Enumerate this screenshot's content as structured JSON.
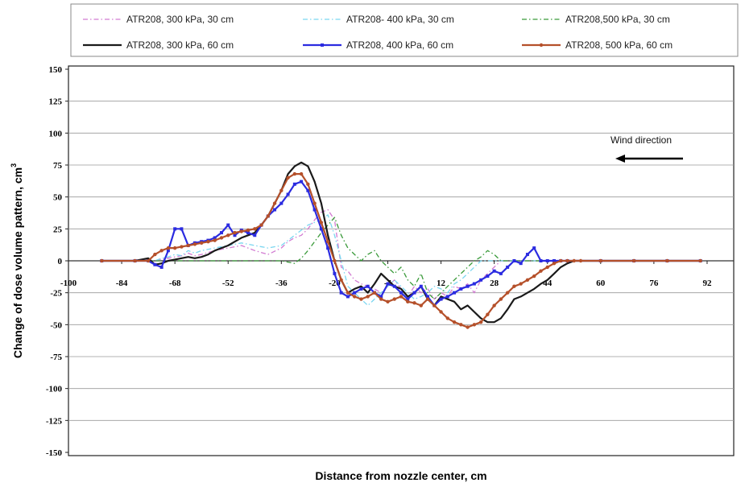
{
  "chart_data": {
    "type": "line",
    "xlabel": "Distance from nozzle center, cm",
    "ylabel": "Change of dose volume pattern, cm",
    "ylabel_superscript": "3",
    "ylim": [
      -150,
      150
    ],
    "yticks": [
      150,
      125,
      100,
      75,
      50,
      25,
      0,
      -25,
      -50,
      -75,
      -100,
      -125,
      -150
    ],
    "xlim": [
      -100,
      100
    ],
    "xticks": [
      -100,
      -84,
      -68,
      -52,
      -36,
      -20,
      -4,
      12,
      28,
      44,
      60,
      76,
      92
    ],
    "xtick_labels": [
      "-100",
      "-84",
      "-68",
      "-52",
      "-36",
      "-20",
      "-4",
      "12",
      "28",
      "44",
      "60",
      "76",
      "92"
    ],
    "grid": "horizontal",
    "legend_position": "top",
    "annotation": {
      "text": "Wind direction",
      "arrow": "left"
    },
    "series": [
      {
        "name": "ATR208, 300 kPa, 30 cm",
        "color": "#d27bd2",
        "style": "dash-dot",
        "marker": "none",
        "x": [
          -90,
          -80,
          -74,
          -72,
          -70,
          -68,
          -66,
          -64,
          -62,
          -60,
          -56,
          -52,
          -48,
          -44,
          -40,
          -36,
          -34,
          -32,
          -30,
          -28,
          -26,
          -24,
          -22,
          -20,
          -18,
          -16,
          -14,
          -12,
          -10,
          -8,
          -6,
          -4,
          -2,
          0,
          2,
          4,
          6,
          8,
          10,
          12,
          14,
          16,
          18,
          20,
          22,
          24,
          26,
          28,
          30,
          32,
          34,
          36,
          40,
          44,
          50,
          56,
          62,
          70,
          80,
          90
        ],
        "y": [
          0,
          0,
          0,
          1,
          2,
          3,
          4,
          6,
          4,
          5,
          8,
          10,
          12,
          8,
          5,
          10,
          15,
          18,
          20,
          25,
          32,
          38,
          40,
          32,
          -5,
          -8,
          -15,
          -18,
          -20,
          -22,
          -25,
          -20,
          -15,
          -22,
          -28,
          -20,
          -25,
          -22,
          -30,
          -25,
          -28,
          -20,
          -22,
          -18,
          -25,
          -15,
          -10,
          -5,
          0,
          0,
          0,
          0,
          0,
          0,
          0,
          0,
          0,
          0,
          0,
          0
        ]
      },
      {
        "name": "ATR208- 400 kPa, 30 cm",
        "color": "#7ad6f0",
        "style": "dash-dot",
        "marker": "none",
        "x": [
          -90,
          -80,
          -74,
          -72,
          -70,
          -68,
          -66,
          -64,
          -62,
          -60,
          -56,
          -52,
          -48,
          -44,
          -40,
          -36,
          -34,
          -32,
          -30,
          -28,
          -26,
          -24,
          -22,
          -20,
          -18,
          -16,
          -14,
          -12,
          -10,
          -8,
          -6,
          -4,
          -2,
          0,
          2,
          4,
          6,
          8,
          10,
          12,
          14,
          16,
          18,
          20,
          22,
          24,
          26,
          28,
          30,
          32,
          34,
          36,
          40,
          44,
          50,
          56,
          62,
          70,
          80,
          90
        ],
        "y": [
          0,
          0,
          0,
          2,
          3,
          5,
          4,
          8,
          6,
          8,
          10,
          12,
          14,
          12,
          10,
          12,
          16,
          20,
          24,
          28,
          30,
          32,
          36,
          20,
          0,
          -20,
          -25,
          -30,
          -35,
          -30,
          -25,
          -20,
          -15,
          -20,
          -25,
          -30,
          -28,
          -25,
          -20,
          -22,
          -25,
          -18,
          -15,
          -10,
          -5,
          0,
          0,
          0,
          0,
          0,
          0,
          0,
          0,
          0,
          0,
          0,
          0,
          0,
          0,
          0
        ]
      },
      {
        "name": "ATR208,500 kPa, 30 cm",
        "color": "#3a9a3a",
        "style": "dash-dot",
        "marker": "none",
        "x": [
          -90,
          -80,
          -70,
          -60,
          -52,
          -44,
          -36,
          -32,
          -30,
          -28,
          -26,
          -24,
          -22,
          -20,
          -18,
          -16,
          -14,
          -12,
          -10,
          -8,
          -6,
          -4,
          -2,
          0,
          2,
          4,
          6,
          8,
          10,
          12,
          14,
          16,
          18,
          20,
          22,
          24,
          26,
          28,
          30,
          32,
          34,
          36,
          40,
          44,
          50,
          56,
          62,
          70,
          80,
          90
        ],
        "y": [
          0,
          0,
          0,
          0,
          0,
          0,
          0,
          -2,
          2,
          8,
          15,
          22,
          28,
          34,
          20,
          10,
          5,
          0,
          5,
          8,
          0,
          -5,
          -10,
          -5,
          -15,
          -20,
          -10,
          -25,
          -30,
          -25,
          -20,
          -15,
          -10,
          -5,
          0,
          3,
          8,
          5,
          0,
          0,
          0,
          0,
          0,
          0,
          0,
          0,
          0,
          0,
          0,
          0
        ]
      },
      {
        "name": "ATR208, 300 kPa, 60 cm",
        "color": "#1a1a1a",
        "style": "solid",
        "marker": "none",
        "x": [
          -90,
          -80,
          -76,
          -74,
          -72,
          -70,
          -68,
          -66,
          -64,
          -62,
          -60,
          -58,
          -56,
          -54,
          -52,
          -50,
          -48,
          -46,
          -44,
          -42,
          -40,
          -38,
          -36,
          -34,
          -32,
          -30,
          -28,
          -26,
          -24,
          -22,
          -20,
          -18,
          -16,
          -14,
          -12,
          -10,
          -8,
          -6,
          -4,
          -2,
          0,
          2,
          4,
          6,
          8,
          10,
          12,
          14,
          16,
          18,
          20,
          22,
          24,
          26,
          28,
          30,
          32,
          34,
          36,
          38,
          40,
          42,
          44,
          46,
          48,
          50,
          52,
          54,
          56,
          60,
          70,
          80,
          90
        ],
        "y": [
          0,
          0,
          2,
          -3,
          -2,
          0,
          1,
          2,
          3,
          2,
          3,
          5,
          8,
          10,
          12,
          15,
          18,
          20,
          22,
          28,
          35,
          45,
          55,
          68,
          74,
          77,
          74,
          62,
          45,
          20,
          0,
          -15,
          -25,
          -22,
          -20,
          -25,
          -18,
          -10,
          -15,
          -20,
          -22,
          -28,
          -25,
          -20,
          -30,
          -35,
          -28,
          -30,
          -32,
          -38,
          -35,
          -40,
          -45,
          -48,
          -48,
          -45,
          -38,
          -30,
          -28,
          -25,
          -22,
          -18,
          -15,
          -10,
          -5,
          -2,
          0,
          0,
          0,
          0,
          0,
          0,
          0
        ]
      },
      {
        "name": "ATR208, 400 kPa, 60 cm",
        "color": "#2b2be0",
        "style": "solid",
        "marker": "square",
        "x": [
          -90,
          -80,
          -76,
          -74,
          -72,
          -70,
          -68,
          -66,
          -64,
          -62,
          -60,
          -58,
          -56,
          -54,
          -52,
          -50,
          -48,
          -46,
          -44,
          -42,
          -40,
          -38,
          -36,
          -34,
          -32,
          -30,
          -28,
          -26,
          -24,
          -22,
          -20,
          -18,
          -16,
          -14,
          -12,
          -10,
          -8,
          -6,
          -4,
          -2,
          0,
          2,
          4,
          6,
          8,
          10,
          12,
          14,
          16,
          18,
          20,
          22,
          24,
          26,
          28,
          30,
          32,
          34,
          36,
          38,
          40,
          42,
          44,
          46,
          48,
          50,
          60,
          70,
          80,
          90
        ],
        "y": [
          0,
          0,
          0,
          -3,
          -5,
          8,
          25,
          25,
          12,
          14,
          15,
          16,
          18,
          22,
          28,
          20,
          24,
          22,
          20,
          28,
          35,
          40,
          45,
          52,
          60,
          62,
          55,
          40,
          25,
          10,
          -10,
          -25,
          -28,
          -25,
          -22,
          -20,
          -25,
          -28,
          -18,
          -20,
          -25,
          -30,
          -25,
          -20,
          -28,
          -35,
          -30,
          -28,
          -25,
          -22,
          -20,
          -18,
          -15,
          -12,
          -8,
          -10,
          -5,
          0,
          -2,
          5,
          10,
          0,
          0,
          0,
          0,
          0,
          0,
          0,
          0,
          0
        ]
      },
      {
        "name": "ATR208, 500 kPa, 60 cm",
        "color": "#b5502a",
        "style": "solid",
        "marker": "circle",
        "x": [
          -90,
          -80,
          -76,
          -74,
          -72,
          -70,
          -68,
          -66,
          -64,
          -62,
          -60,
          -58,
          -56,
          -54,
          -52,
          -50,
          -48,
          -46,
          -44,
          -42,
          -40,
          -38,
          -36,
          -34,
          -32,
          -30,
          -28,
          -26,
          -24,
          -22,
          -20,
          -18,
          -16,
          -14,
          -12,
          -10,
          -8,
          -6,
          -4,
          -2,
          0,
          2,
          4,
          6,
          8,
          10,
          12,
          14,
          16,
          18,
          20,
          22,
          24,
          26,
          28,
          30,
          32,
          34,
          36,
          38,
          40,
          42,
          44,
          46,
          48,
          50,
          52,
          54,
          60,
          70,
          80,
          90
        ],
        "y": [
          0,
          0,
          0,
          5,
          8,
          10,
          10,
          11,
          12,
          13,
          14,
          15,
          16,
          18,
          20,
          22,
          23,
          24,
          25,
          28,
          35,
          45,
          55,
          65,
          68,
          68,
          60,
          45,
          30,
          15,
          0,
          -15,
          -25,
          -28,
          -30,
          -28,
          -25,
          -30,
          -32,
          -30,
          -28,
          -32,
          -33,
          -35,
          -30,
          -35,
          -40,
          -45,
          -48,
          -50,
          -52,
          -50,
          -48,
          -42,
          -35,
          -30,
          -25,
          -20,
          -18,
          -15,
          -12,
          -8,
          -5,
          -2,
          0,
          0,
          0,
          0,
          0,
          0,
          0,
          0
        ]
      }
    ]
  }
}
